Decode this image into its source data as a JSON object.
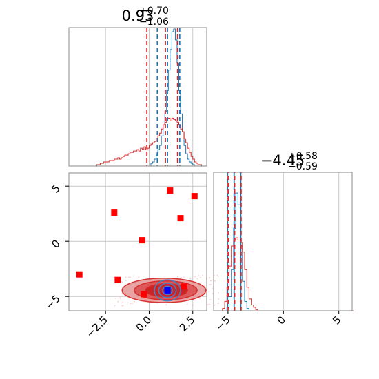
{
  "chart_data": [
    {
      "type": "histogram",
      "panel": "top-left",
      "title": {
        "median": "0.93",
        "plus": "+0.70",
        "minus": "−1.06"
      },
      "xlim": [
        -4.6,
        3.3
      ],
      "bins_start": -4.6,
      "bin_width": 0.1,
      "series": [
        {
          "name": "",
          "color": "#1f77b4",
          "counts": [
            0,
            0,
            0,
            0,
            0,
            0,
            0,
            0,
            0,
            0,
            0,
            0,
            0,
            0,
            0,
            0,
            0,
            0,
            0,
            0,
            0,
            0,
            0,
            0,
            0,
            0,
            0,
            0,
            0,
            0,
            0,
            0,
            0,
            0,
            0,
            0,
            0,
            0,
            0,
            0,
            0,
            0,
            0,
            0,
            0,
            0,
            0,
            0.02,
            0.03,
            0.05,
            0.08,
            0.12,
            0.15,
            0.22,
            0.3,
            0.4,
            0.55,
            0.7,
            0.85,
            0.98,
            1.0,
            0.92,
            0.75,
            0.55,
            0.38,
            0.25,
            0.15,
            0.09,
            0.05,
            0.03,
            0.02,
            0.01,
            0,
            0,
            0,
            0,
            0,
            0,
            0
          ]
        },
        {
          "name": "",
          "color": "#d62728",
          "counts": [
            0,
            0,
            0,
            0,
            0,
            0,
            0,
            0,
            0,
            0,
            0,
            0,
            0,
            0,
            0,
            0,
            0.01,
            0.01,
            0.02,
            0.02,
            0.03,
            0.03,
            0.03,
            0.04,
            0.04,
            0.04,
            0.05,
            0.05,
            0.06,
            0.05,
            0.06,
            0.07,
            0.08,
            0.08,
            0.09,
            0.1,
            0.1,
            0.11,
            0.11,
            0.12,
            0.11,
            0.13,
            0.12,
            0.14,
            0.12,
            0.13,
            0.15,
            0.16,
            0.17,
            0.18,
            0.2,
            0.22,
            0.24,
            0.27,
            0.3,
            0.32,
            0.35,
            0.35,
            0.33,
            0.35,
            0.34,
            0.33,
            0.32,
            0.3,
            0.27,
            0.25,
            0.2,
            0.17,
            0.13,
            0.1,
            0.07,
            0.05,
            0.03,
            0.02,
            0.01,
            0.01,
            0,
            0,
            0
          ]
        }
      ],
      "quantile_lines": {
        "blue": [
          0.47,
          1.05,
          1.75
        ],
        "red": [
          -0.13,
          0.93,
          1.63
        ]
      },
      "xticks": [
        -2.5,
        0.0,
        2.5
      ]
    },
    {
      "type": "scatter",
      "panel": "bottom-left",
      "xlim": [
        -4.6,
        3.3
      ],
      "ylim": [
        -6.3,
        6.2
      ],
      "xticks": [
        -2.5,
        0.0,
        2.5
      ],
      "yticks": [
        -5,
        0,
        5
      ],
      "xtick_labels": [
        "−2.5",
        "0.0",
        "2.5"
      ],
      "ytick_labels": [
        "−5",
        "0",
        "5"
      ],
      "red_square_markers": [
        [
          1.2,
          4.6
        ],
        [
          2.6,
          4.1
        ],
        [
          -2.0,
          2.6
        ],
        [
          1.8,
          2.1
        ],
        [
          -0.4,
          0.1
        ],
        [
          -4.0,
          -3.0
        ],
        [
          -1.8,
          -3.5
        ],
        [
          -0.3,
          -4.8
        ],
        [
          2.0,
          -4.1
        ]
      ],
      "blue_square_marker": [
        1.05,
        -4.45
      ],
      "red_contours": [
        {
          "cx": 0.85,
          "cy": -4.45,
          "rx": 2.4,
          "ry": 1.1,
          "fill_opacity": 0.5
        },
        {
          "cx": 0.95,
          "cy": -4.45,
          "rx": 1.8,
          "ry": 0.85,
          "fill_opacity": 0.7
        },
        {
          "cx": 1.0,
          "cy": -4.45,
          "rx": 1.2,
          "ry": 0.6,
          "fill_opacity": 0.9
        }
      ],
      "blue_contours": [
        {
          "cx": 1.05,
          "cy": -4.45,
          "rx": 0.75,
          "ry": 0.95
        },
        {
          "cx": 1.05,
          "cy": -4.45,
          "rx": 0.5,
          "ry": 0.65
        },
        {
          "cx": 1.05,
          "cy": -4.45,
          "rx": 0.28,
          "ry": 0.38
        }
      ]
    },
    {
      "type": "histogram",
      "panel": "bottom-right",
      "title": {
        "median": "−4.45",
        "plus": "+0.58",
        "minus": "−0.59"
      },
      "xlim": [
        -6.3,
        6.2
      ],
      "bins_start": -6.3,
      "bin_width": 0.2,
      "series": [
        {
          "name": "",
          "color": "#1f77b4",
          "counts": [
            0,
            0,
            0,
            0,
            0,
            0,
            0.03,
            0.12,
            0.35,
            0.7,
            1.0,
            0.9,
            0.55,
            0.25,
            0.08,
            0.02,
            0,
            0,
            0,
            0,
            0,
            0,
            0,
            0,
            0,
            0,
            0,
            0,
            0,
            0,
            0,
            0,
            0,
            0,
            0,
            0,
            0,
            0,
            0,
            0,
            0,
            0,
            0,
            0,
            0,
            0,
            0,
            0,
            0,
            0,
            0,
            0,
            0,
            0,
            0,
            0,
            0,
            0,
            0,
            0,
            0,
            0,
            0
          ]
        },
        {
          "name": "",
          "color": "#d62728",
          "counts": [
            0,
            0,
            0,
            0,
            0.02,
            0.08,
            0.2,
            0.38,
            0.55,
            0.6,
            0.62,
            0.6,
            0.58,
            0.5,
            0.35,
            0.2,
            0.1,
            0.05,
            0.03,
            0.01,
            0,
            0,
            0,
            0,
            0,
            0,
            0,
            0,
            0,
            0,
            0,
            0,
            0,
            0,
            0,
            0,
            0,
            0,
            0,
            0,
            0,
            0,
            0,
            0,
            0,
            0,
            0,
            0,
            0,
            0,
            0,
            0,
            0,
            0,
            0,
            0,
            0,
            0,
            0,
            0,
            0,
            0,
            0
          ]
        }
      ],
      "quantile_lines": {
        "blue": [
          -5.05,
          -4.45,
          -3.85
        ],
        "red": [
          -5.04,
          -4.45,
          -3.87
        ]
      },
      "xticks": [
        -5,
        0,
        5
      ],
      "xtick_labels": [
        "−5",
        "0",
        "5"
      ]
    }
  ]
}
